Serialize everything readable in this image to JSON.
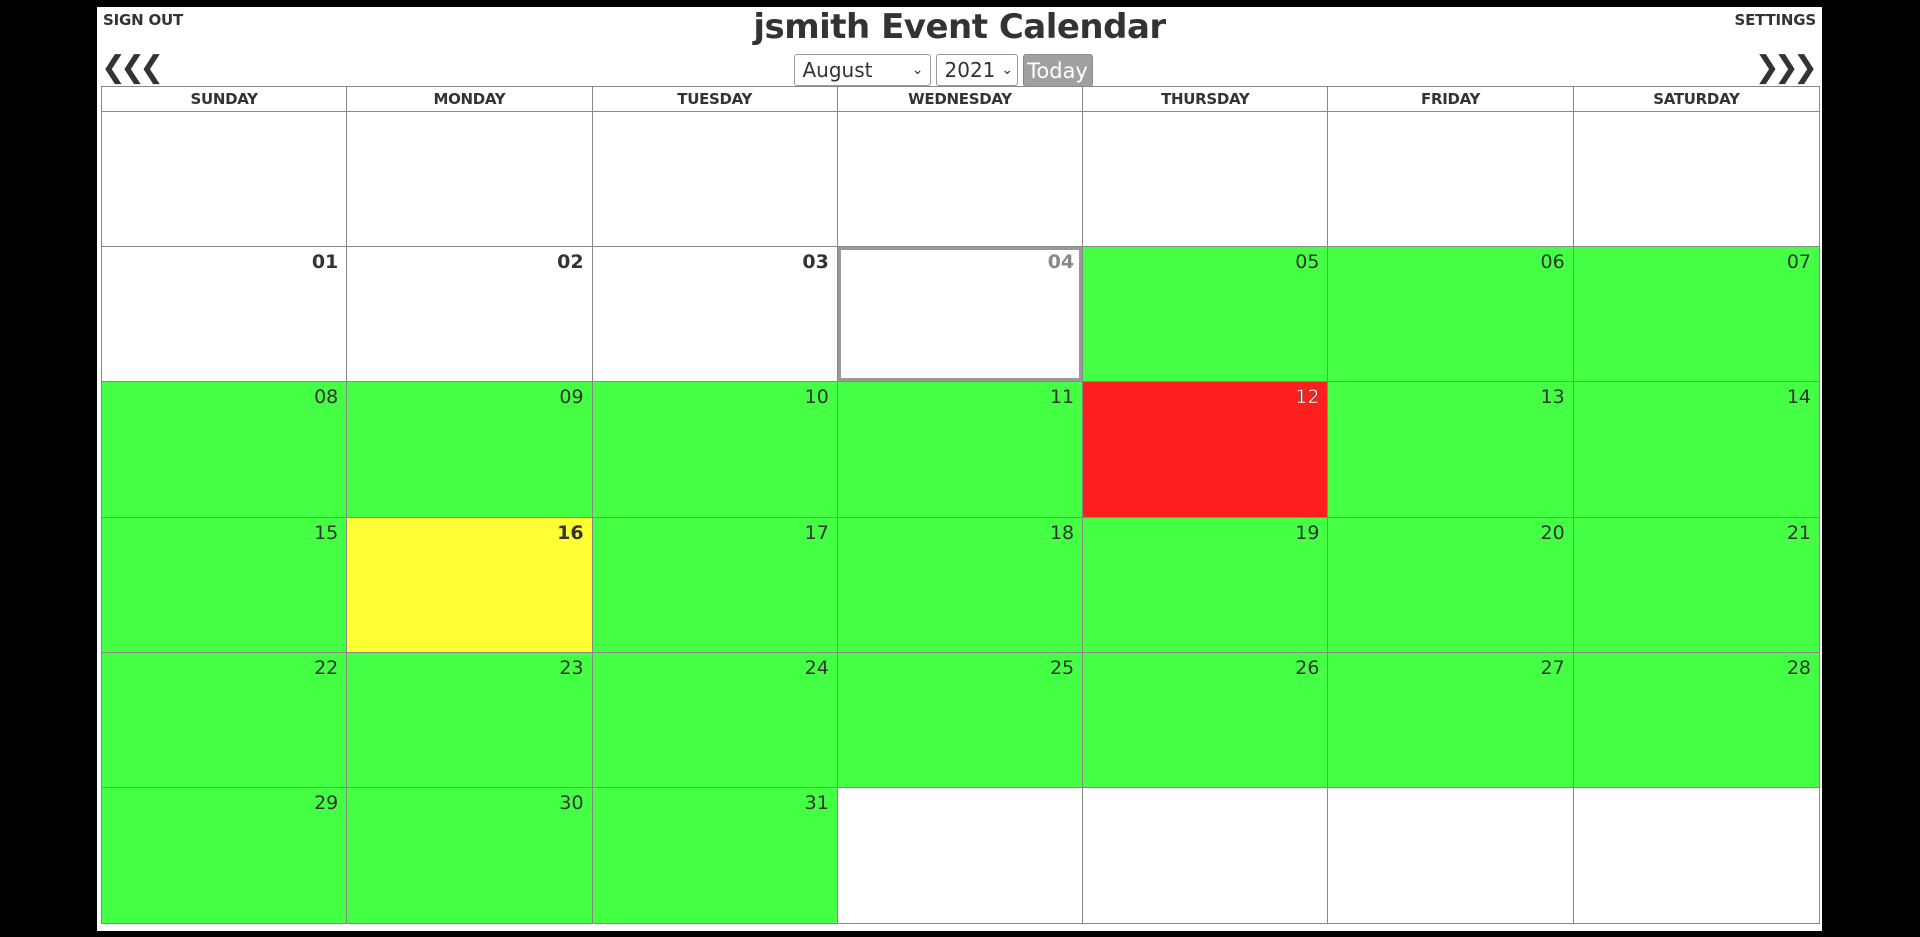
{
  "header": {
    "title": "jsmith Event Calendar",
    "sign_out": "SIGN OUT",
    "settings": "SETTINGS",
    "prev_arrow": "⟪⟨",
    "next_arrow": "⟩⟫"
  },
  "controls": {
    "month": "August",
    "year": "2021",
    "today": "Today"
  },
  "colors": {
    "available": "#44ff44",
    "busy": "#ff1f1f",
    "today": "#ffff33",
    "empty": "#ffffff"
  },
  "weekdays": [
    "SUNDAY",
    "MONDAY",
    "TUESDAY",
    "WEDNESDAY",
    "THURSDAY",
    "FRIDAY",
    "SATURDAY"
  ],
  "weeks": [
    [
      {
        "day": "",
        "status": "empty"
      },
      {
        "day": "",
        "status": "empty"
      },
      {
        "day": "",
        "status": "empty"
      },
      {
        "day": "",
        "status": "empty"
      },
      {
        "day": "",
        "status": "empty"
      },
      {
        "day": "",
        "status": "empty"
      },
      {
        "day": "",
        "status": "empty"
      }
    ],
    [
      {
        "day": "01",
        "status": "empty",
        "bold": true
      },
      {
        "day": "02",
        "status": "empty",
        "bold": true
      },
      {
        "day": "03",
        "status": "empty",
        "bold": true
      },
      {
        "day": "04",
        "status": "empty",
        "selected": true
      },
      {
        "day": "05",
        "status": "available"
      },
      {
        "day": "06",
        "status": "available"
      },
      {
        "day": "07",
        "status": "available"
      }
    ],
    [
      {
        "day": "08",
        "status": "available"
      },
      {
        "day": "09",
        "status": "available"
      },
      {
        "day": "10",
        "status": "available"
      },
      {
        "day": "11",
        "status": "available"
      },
      {
        "day": "12",
        "status": "busy"
      },
      {
        "day": "13",
        "status": "available"
      },
      {
        "day": "14",
        "status": "available"
      }
    ],
    [
      {
        "day": "15",
        "status": "available"
      },
      {
        "day": "16",
        "status": "today",
        "bold": true
      },
      {
        "day": "17",
        "status": "available"
      },
      {
        "day": "18",
        "status": "available"
      },
      {
        "day": "19",
        "status": "available"
      },
      {
        "day": "20",
        "status": "available"
      },
      {
        "day": "21",
        "status": "available"
      }
    ],
    [
      {
        "day": "22",
        "status": "available"
      },
      {
        "day": "23",
        "status": "available"
      },
      {
        "day": "24",
        "status": "available"
      },
      {
        "day": "25",
        "status": "available"
      },
      {
        "day": "26",
        "status": "available"
      },
      {
        "day": "27",
        "status": "available"
      },
      {
        "day": "28",
        "status": "available"
      }
    ],
    [
      {
        "day": "29",
        "status": "available"
      },
      {
        "day": "30",
        "status": "available"
      },
      {
        "day": "31",
        "status": "available"
      },
      {
        "day": "",
        "status": "empty"
      },
      {
        "day": "",
        "status": "empty"
      },
      {
        "day": "",
        "status": "empty"
      },
      {
        "day": "",
        "status": "empty"
      }
    ]
  ]
}
